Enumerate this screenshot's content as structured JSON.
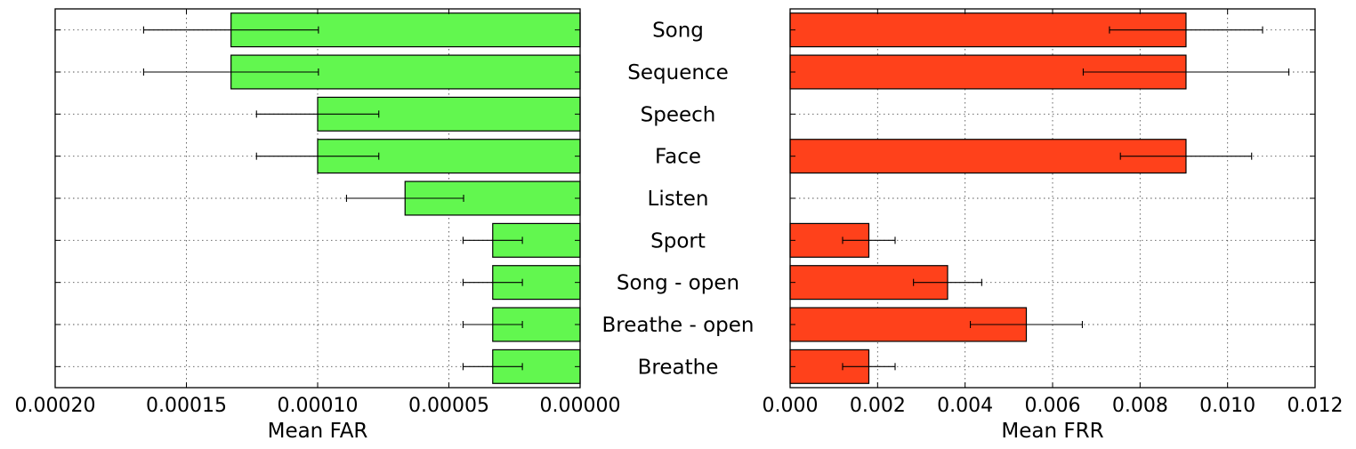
{
  "chart_data": [
    {
      "type": "bar",
      "orientation": "horizontal",
      "inverted_x": true,
      "categories": [
        "Song",
        "Sequence",
        "Speech",
        "Face",
        "Listen",
        "Sport",
        "Song - open",
        "Breathe - open",
        "Breathe"
      ],
      "values": [
        0.000133,
        0.000133,
        0.0001,
        0.0001,
        6.67e-05,
        3.33e-05,
        3.33e-05,
        3.33e-05,
        3.33e-05
      ],
      "errors": [
        3.33e-05,
        3.33e-05,
        2.33e-05,
        2.33e-05,
        2.23e-05,
        1.13e-05,
        1.13e-05,
        1.13e-05,
        1.13e-05
      ],
      "xlabel": "Mean FAR",
      "xlim": [
        0.0002,
        0.0
      ],
      "xticks": [
        "0.00020",
        "0.00015",
        "0.00010",
        "0.00005",
        "0.00000"
      ],
      "xtick_values": [
        0.0002,
        0.00015,
        0.0001,
        5e-05,
        0.0
      ],
      "grid": true,
      "bar_color": "#62f74f"
    },
    {
      "type": "bar",
      "orientation": "horizontal",
      "categories": [
        "Song",
        "Sequence",
        "Speech",
        "Face",
        "Listen",
        "Sport",
        "Song - open",
        "Breathe - open",
        "Breathe"
      ],
      "values": [
        0.00905,
        0.00905,
        0.0,
        0.00905,
        0.0,
        0.0018,
        0.0036,
        0.0054,
        0.0018
      ],
      "errors": [
        0.00175,
        0.00235,
        0.0,
        0.0015,
        0.0,
        0.0006,
        0.00078,
        0.00128,
        0.0006
      ],
      "xlabel": "Mean FRR",
      "xlim": [
        0.0,
        0.012
      ],
      "xticks": [
        "0.000",
        "0.002",
        "0.004",
        "0.006",
        "0.008",
        "0.010",
        "0.012"
      ],
      "xtick_values": [
        0.0,
        0.002,
        0.004,
        0.006,
        0.008,
        0.01,
        0.012
      ],
      "grid": true,
      "bar_color": "#ff411b"
    }
  ]
}
